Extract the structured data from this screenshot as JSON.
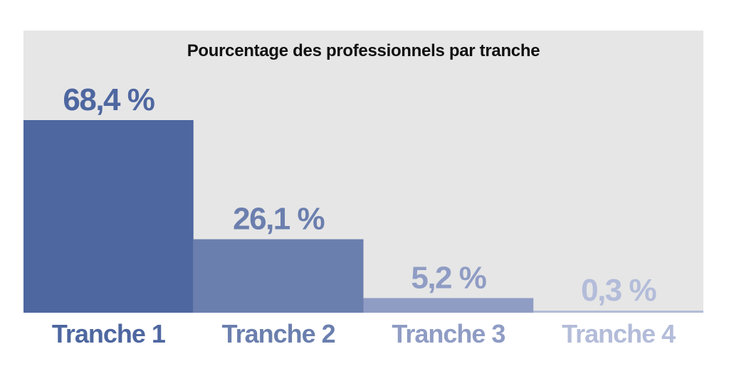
{
  "chart_data": {
    "type": "bar",
    "title": "Pourcentage des professionnels par tranche",
    "categories": [
      "Tranche 1",
      "Tranche 2",
      "Tranche 3",
      "Tranche 4"
    ],
    "values": [
      68.4,
      26.1,
      5.2,
      0.3
    ],
    "value_labels": [
      "68,4 %",
      "26,1 %",
      "5,2 %",
      "0,3 %"
    ],
    "ylim": [
      0,
      100
    ],
    "grid": false,
    "legend": "none",
    "colors": [
      "#4e67a0",
      "#6b7fae",
      "#8f9cc4",
      "#b3bcd9"
    ],
    "panel_color": "#e6e6e6"
  }
}
